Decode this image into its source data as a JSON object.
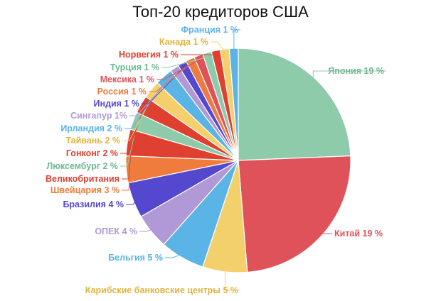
{
  "chart_data": {
    "type": "pie",
    "title": "Топ-20 кредиторов США",
    "slices": [
      {
        "label": "Япония 19 %",
        "value": 19,
        "color": "#8ecbab"
      },
      {
        "label": "Китай 19 %",
        "value": 19,
        "color": "#e0525a"
      },
      {
        "label": "Карибские банковские центры 5 %",
        "value": 5,
        "color": "#f4d06c"
      },
      {
        "label": "Бельгия 5 %",
        "value": 5,
        "color": "#5ab4e5"
      },
      {
        "label": "ОПЕК 4 %",
        "value": 4,
        "color": "#b099d6"
      },
      {
        "label": "Бразилия 4 %",
        "value": 4,
        "color": "#5448cf"
      },
      {
        "label": "Швейцария 3 %",
        "value": 3,
        "color": "#ef7b3c"
      },
      {
        "label": "Великобритания",
        "value": 3,
        "color": "#e04030"
      },
      {
        "label": "Люксембург 2 %",
        "value": 2,
        "color": "#8ecbab"
      },
      {
        "label": "Гонконг 2 %",
        "value": 2,
        "color": "#e04030"
      },
      {
        "label": "Тайвань 2 %",
        "value": 2,
        "color": "#f4d06c"
      },
      {
        "label": "Ирландия 2 %",
        "value": 2,
        "color": "#5ab4e5"
      },
      {
        "label": "Сингапур 1%",
        "value": 1,
        "color": "#b099d6"
      },
      {
        "label": "Индия 1 %",
        "value": 1,
        "color": "#5448cf"
      },
      {
        "label": "Россия 1 %",
        "value": 1,
        "color": "#ef7b3c"
      },
      {
        "label": "Мексика 1 %",
        "value": 1,
        "color": "#e0525a"
      },
      {
        "label": "Турция 1 %",
        "value": 1,
        "color": "#8ecbab"
      },
      {
        "label": "Норвегия 1 %",
        "value": 1,
        "color": "#e04030"
      },
      {
        "label": "Канада 1 %",
        "value": 1,
        "color": "#f4d06c"
      },
      {
        "label": "Франция 1 %",
        "value": 1,
        "color": "#5ab4e5"
      }
    ]
  }
}
